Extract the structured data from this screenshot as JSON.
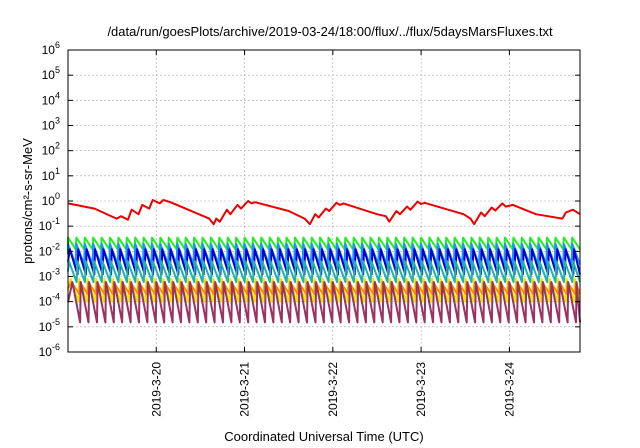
{
  "chart_data": {
    "type": "line",
    "title": "/data/run/goesPlots/archive/2019-03-24/18:00/flux/../flux/5daysMarsFluxes.txt",
    "xlabel": "Coordinated Universal Time (UTC)",
    "ylabel": "protons/cm²-s-sr-MeV",
    "yscale": "log",
    "ylim": [
      1e-06,
      1000000.0
    ],
    "xlim": [
      0,
      5.8
    ],
    "x_ticks": [
      {
        "label": "2019-3-20",
        "x": 1
      },
      {
        "label": "2019-3-21",
        "x": 2
      },
      {
        "label": "2019-3-22",
        "x": 3
      },
      {
        "label": "2019-3-23",
        "x": 4
      },
      {
        "label": "2019-3-24",
        "x": 5
      }
    ],
    "y_ticks": [
      {
        "exp": -6,
        "value": 1e-06
      },
      {
        "exp": -5,
        "value": 1e-05
      },
      {
        "exp": -4,
        "value": 0.0001
      },
      {
        "exp": -3,
        "value": 0.001
      },
      {
        "exp": -2,
        "value": 0.01
      },
      {
        "exp": -1,
        "value": 0.1
      },
      {
        "exp": 0,
        "value": 1
      },
      {
        "exp": 1,
        "value": 10
      },
      {
        "exp": 2,
        "value": 100
      },
      {
        "exp": 3,
        "value": 1000
      },
      {
        "exp": 4,
        "value": 10000
      },
      {
        "exp": 5,
        "value": 100000
      },
      {
        "exp": 6,
        "value": 1000000
      }
    ],
    "grid": true,
    "series": [
      {
        "color": "#ee0000",
        "x": [
          0,
          0.3,
          0.55,
          0.6,
          0.68,
          0.72,
          0.8,
          0.84,
          0.92,
          0.96,
          1.04,
          1.08,
          1.16,
          1.6,
          1.65,
          1.68,
          1.72,
          1.8,
          1.84,
          1.92,
          1.96,
          2.04,
          2.08,
          2.12,
          2.5,
          2.68,
          2.74,
          2.8,
          2.84,
          2.92,
          2.96,
          3.04,
          3.08,
          3.12,
          3.5,
          3.6,
          3.64,
          3.72,
          3.76,
          3.84,
          3.88,
          3.96,
          4.0,
          4.04,
          4.48,
          4.56,
          4.6,
          4.68,
          4.72,
          4.8,
          4.84,
          4.92,
          4.96,
          5.04,
          5.3,
          5.6,
          5.64,
          5.72,
          5.8
        ],
        "y": [
          0.8,
          0.5,
          0.2,
          0.25,
          0.18,
          0.45,
          0.3,
          0.7,
          0.5,
          1.1,
          0.8,
          1.1,
          0.9,
          0.2,
          0.12,
          0.2,
          0.15,
          0.45,
          0.3,
          0.7,
          0.5,
          1.0,
          0.8,
          0.9,
          0.4,
          0.2,
          0.12,
          0.3,
          0.22,
          0.5,
          0.4,
          0.85,
          0.7,
          0.8,
          0.3,
          0.25,
          0.15,
          0.4,
          0.3,
          0.6,
          0.45,
          0.95,
          0.75,
          0.85,
          0.3,
          0.2,
          0.12,
          0.35,
          0.25,
          0.55,
          0.42,
          0.8,
          0.6,
          0.7,
          0.3,
          0.2,
          0.35,
          0.45,
          0.3
        ]
      },
      {
        "color": "#22ee22",
        "base": 0.012,
        "peak": 0.035,
        "period": 0.0952,
        "phase": 0.0,
        "start": 0.0
      },
      {
        "color": "#1e90ff",
        "base": 0.003,
        "peak": 0.02,
        "period": 0.0952,
        "phase": 0.0,
        "start": 0.0
      },
      {
        "color": "#0000cc",
        "base": 0.0012,
        "peak": 0.012,
        "period": 0.0952,
        "phase": 0.02,
        "start": 0.0
      },
      {
        "color": "#20b2aa",
        "base": 0.0006,
        "peak": 0.004,
        "period": 0.0952,
        "phase": 0.01,
        "start": 0.0
      },
      {
        "color": "#e8e800",
        "base": 0.0001,
        "peak": 0.0008,
        "period": 0.0952,
        "phase": 0.03,
        "start": 0.0
      },
      {
        "color": "#ff8c00",
        "base": 0.0002,
        "peak": 0.0006,
        "period": 0.0952,
        "phase": 0.04,
        "start": 0.0
      },
      {
        "color": "#993366",
        "base": 1.5e-05,
        "peak": 0.0006,
        "period": 0.0952,
        "phase": 0.05,
        "start": 0.0
      }
    ]
  }
}
